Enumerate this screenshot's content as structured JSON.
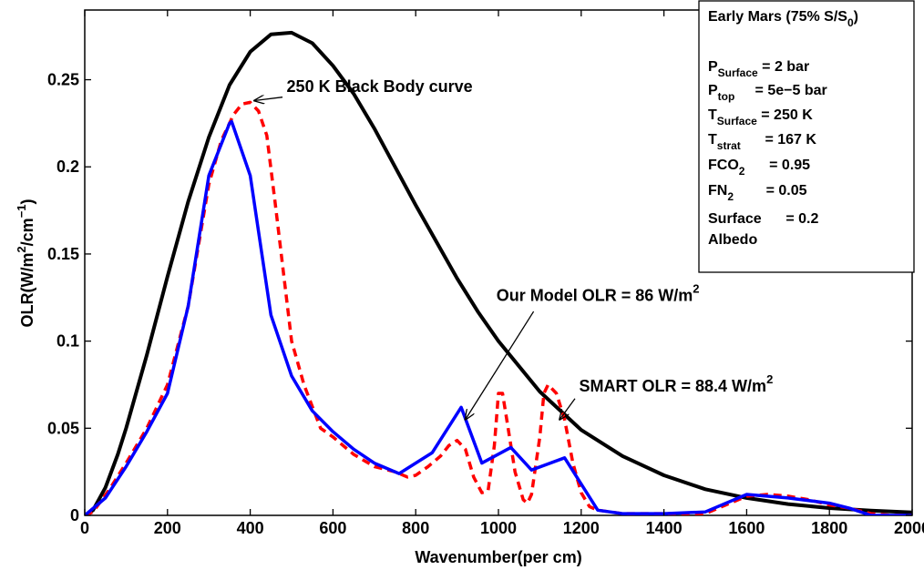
{
  "chart_data": {
    "type": "line",
    "xlabel": "Wavenumber(per cm)",
    "ylabel": {
      "base": "OLR(W/m",
      "sup1": "2",
      "mid": "/cm",
      "sup2": "−1",
      "end": ")"
    },
    "xlim": [
      0,
      2000
    ],
    "ylim": [
      0,
      0.29
    ],
    "xticks": [
      0,
      200,
      400,
      600,
      800,
      1000,
      1200,
      1400,
      1600,
      1800,
      2000
    ],
    "yticks": [
      0,
      0.05,
      0.1,
      0.15,
      0.2,
      0.25
    ],
    "ytick_labels": [
      "0",
      "0.05",
      "0.1",
      "0.15",
      "0.2",
      "0.25"
    ],
    "grid": false,
    "series": [
      {
        "key": "blackbody",
        "color": "#000000",
        "style": "solid",
        "x": [
          0,
          20,
          50,
          80,
          100,
          150,
          200,
          250,
          300,
          350,
          400,
          450,
          500,
          550,
          600,
          650,
          700,
          750,
          800,
          850,
          900,
          950,
          1000,
          1100,
          1200,
          1300,
          1400,
          1500,
          1600,
          1700,
          1800,
          1900,
          2000
        ],
        "y": [
          0,
          0.003,
          0.016,
          0.035,
          0.05,
          0.092,
          0.137,
          0.18,
          0.217,
          0.247,
          0.266,
          0.276,
          0.277,
          0.271,
          0.258,
          0.242,
          0.222,
          0.2,
          0.178,
          0.157,
          0.136,
          0.117,
          0.1,
          0.071,
          0.049,
          0.034,
          0.023,
          0.015,
          0.01,
          0.0065,
          0.0042,
          0.0027,
          0.0017
        ]
      },
      {
        "key": "smart",
        "color": "#ff0000",
        "style": "dashed",
        "x": [
          0,
          20,
          60,
          100,
          150,
          200,
          250,
          300,
          330,
          360,
          380,
          400,
          420,
          440,
          460,
          500,
          530,
          570,
          600,
          650,
          700,
          750,
          780,
          800,
          830,
          860,
          880,
          900,
          920,
          940,
          960,
          975,
          990,
          1000,
          1010,
          1020,
          1040,
          1060,
          1070,
          1080,
          1100,
          1110,
          1120,
          1140,
          1160,
          1180,
          1200,
          1220,
          1240,
          1300,
          1400,
          1500,
          1550,
          1600,
          1650,
          1700,
          1750,
          1800,
          1850,
          1900,
          1950,
          2000
        ],
        "y": [
          0,
          0.002,
          0.015,
          0.03,
          0.05,
          0.075,
          0.12,
          0.19,
          0.215,
          0.23,
          0.236,
          0.237,
          0.232,
          0.218,
          0.18,
          0.1,
          0.075,
          0.05,
          0.045,
          0.035,
          0.028,
          0.025,
          0.022,
          0.023,
          0.028,
          0.034,
          0.04,
          0.043,
          0.038,
          0.022,
          0.013,
          0.014,
          0.04,
          0.07,
          0.07,
          0.055,
          0.025,
          0.009,
          0.007,
          0.012,
          0.045,
          0.07,
          0.075,
          0.07,
          0.055,
          0.03,
          0.013,
          0.005,
          0.003,
          0.001,
          0.001,
          0.001,
          0.006,
          0.011,
          0.012,
          0.011,
          0.009,
          0.006,
          0.004,
          0.001,
          0.0,
          0.0
        ]
      },
      {
        "key": "model",
        "color": "#0000ff",
        "style": "solid",
        "x": [
          0,
          50,
          100,
          150,
          200,
          250,
          300,
          350,
          355,
          400,
          450,
          500,
          550,
          600,
          650,
          700,
          760,
          840,
          910,
          960,
          1030,
          1080,
          1160,
          1240,
          1300,
          1400,
          1500,
          1600,
          1700,
          1800,
          1850,
          1900,
          2000
        ],
        "y": [
          0,
          0.01,
          0.028,
          0.048,
          0.07,
          0.12,
          0.195,
          0.225,
          0.226,
          0.195,
          0.115,
          0.08,
          0.06,
          0.048,
          0.038,
          0.03,
          0.024,
          0.036,
          0.062,
          0.03,
          0.039,
          0.026,
          0.033,
          0.003,
          0.001,
          0.001,
          0.002,
          0.012,
          0.01,
          0.007,
          0.004,
          0.0,
          0.0
        ]
      }
    ],
    "annotations": [
      {
        "key": "bb",
        "label": "250 K Black Body curve",
        "sup": "",
        "text_x": 488,
        "text_y": 0.243,
        "arrow_from": [
          478,
          0.24
        ],
        "arrow_to": [
          410,
          0.238
        ]
      },
      {
        "key": "model",
        "label": "Our Model OLR = 86 W/m",
        "sup": "2",
        "text_x": 995,
        "text_y": 0.123,
        "arrow_from": [
          1085,
          0.117
        ],
        "arrow_to": [
          920,
          0.055
        ]
      },
      {
        "key": "smart",
        "label": "SMART OLR =  88.4 W/m",
        "sup": "2",
        "text_x": 1195,
        "text_y": 0.071,
        "arrow_from": [
          1185,
          0.067
        ],
        "arrow_to": [
          1148,
          0.055
        ]
      }
    ],
    "legend_box": {
      "placement": "top-right",
      "lines": [
        {
          "key": "title",
          "parts": [
            {
              "t": "Early Mars (75% S/S"
            },
            {
              "sub": "0"
            },
            {
              "t": ")"
            }
          ]
        },
        {
          "key": "ps",
          "parts": [
            {
              "t": "P"
            },
            {
              "sub": "Surface"
            },
            {
              "t": " = 2 bar"
            }
          ]
        },
        {
          "key": "pt",
          "parts": [
            {
              "t": "P"
            },
            {
              "sub": "top"
            },
            {
              "t": "     = 5e−5 bar"
            }
          ]
        },
        {
          "key": "ts",
          "parts": [
            {
              "t": "T"
            },
            {
              "sub": "Surface"
            },
            {
              "t": " = 250 K"
            }
          ]
        },
        {
          "key": "tst",
          "parts": [
            {
              "t": "T"
            },
            {
              "sub": "strat"
            },
            {
              "t": "      = 167 K"
            }
          ]
        },
        {
          "key": "fco2",
          "parts": [
            {
              "t": "FCO"
            },
            {
              "sub": "2"
            },
            {
              "t": "      = 0.95"
            }
          ]
        },
        {
          "key": "fn2",
          "parts": [
            {
              "t": "FN"
            },
            {
              "sub": "2"
            },
            {
              "t": "        = 0.05"
            }
          ]
        },
        {
          "key": "alb1",
          "parts": [
            {
              "t": "Surface      = 0.2"
            }
          ]
        },
        {
          "key": "alb2",
          "parts": [
            {
              "t": "Albedo"
            }
          ]
        }
      ]
    }
  }
}
